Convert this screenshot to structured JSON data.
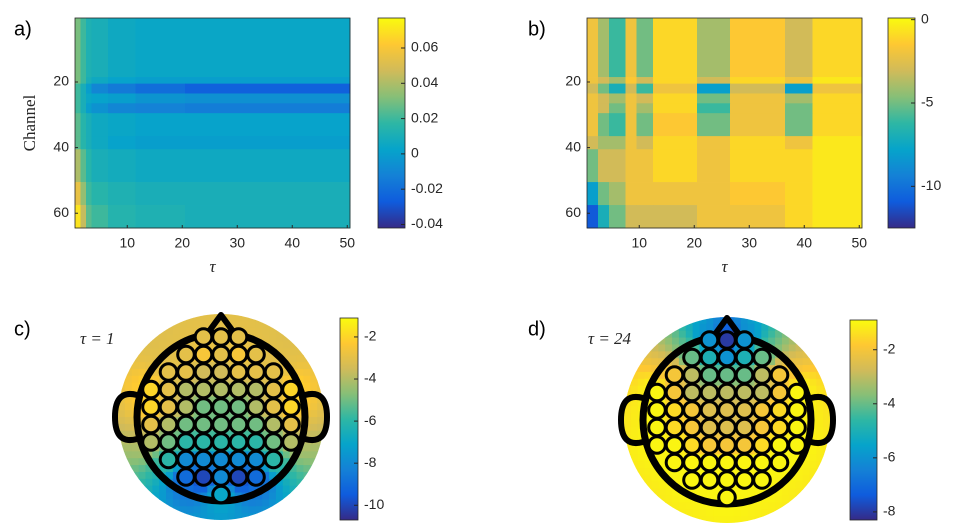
{
  "chart_data": [
    {
      "type": "heatmap",
      "panel_label": "a)",
      "y_label": "Channel",
      "x_label": "τ",
      "colormap": "parula",
      "xlim": [
        0.5,
        50.5
      ],
      "xticks": [
        10,
        20,
        30,
        40,
        50
      ],
      "ylim": [
        64.5,
        0.5
      ],
      "yticks": [
        20,
        40,
        60
      ],
      "x_edges": [
        0.5,
        1.5,
        2.5,
        3.5,
        6.5,
        11.5,
        20.5,
        30.5,
        40.5,
        50.5
      ],
      "y_edges": [
        0.5,
        18.5,
        20.5,
        23.5,
        26.5,
        29.5,
        36.5,
        40.5,
        50.5,
        57.5,
        64.5
      ],
      "values": [
        [
          0.03,
          0.02,
          0.012,
          0.01,
          0.006,
          0.004,
          0.004,
          0.004,
          0.004
        ],
        [
          0.03,
          0.02,
          0.01,
          0.006,
          0.002,
          0.0,
          0.0,
          0.0,
          0.0
        ],
        [
          0.02,
          0.01,
          0.0,
          -0.01,
          -0.015,
          -0.02,
          -0.025,
          -0.025,
          -0.025
        ],
        [
          0.02,
          0.01,
          0.004,
          0.002,
          0.0,
          -0.004,
          -0.006,
          -0.006,
          -0.006
        ],
        [
          0.02,
          0.01,
          0.0,
          -0.005,
          -0.01,
          -0.012,
          -0.014,
          -0.014,
          -0.014
        ],
        [
          0.025,
          0.015,
          0.01,
          0.006,
          0.004,
          0.002,
          0.002,
          0.002,
          0.002
        ],
        [
          0.025,
          0.015,
          0.01,
          0.006,
          0.002,
          0.0,
          0.0,
          0.0,
          0.0
        ],
        [
          0.04,
          0.025,
          0.015,
          0.01,
          0.008,
          0.006,
          0.006,
          0.006,
          0.006
        ],
        [
          0.055,
          0.035,
          0.02,
          0.015,
          0.012,
          0.01,
          0.01,
          0.01,
          0.01
        ],
        [
          0.07,
          0.045,
          0.025,
          0.02,
          0.014,
          0.012,
          0.01,
          0.01,
          0.01
        ]
      ],
      "clim": [
        -0.042,
        0.077
      ],
      "cticks": [
        -0.04,
        -0.02,
        0,
        0.02,
        0.04,
        0.06
      ]
    },
    {
      "type": "heatmap",
      "panel_label": "b)",
      "x_label": "τ",
      "colormap": "parula",
      "xlim": [
        0.5,
        50.5
      ],
      "xticks": [
        10,
        20,
        30,
        40,
        50
      ],
      "ylim": [
        64.5,
        0.5
      ],
      "yticks": [
        20,
        40,
        60
      ],
      "x_edges": [
        0.5,
        2.5,
        4.5,
        7.5,
        9.5,
        12.5,
        20.5,
        26.5,
        36.5,
        41.5,
        50.5
      ],
      "y_edges": [
        0.5,
        18.5,
        20.5,
        23.5,
        26.5,
        29.5,
        36.5,
        40.5,
        50.5,
        57.5,
        64.5
      ],
      "values": [
        [
          -2,
          -4,
          -6,
          -2,
          -5,
          -1,
          -4,
          -1.5,
          -3,
          -1
        ],
        [
          -2,
          -3,
          -4,
          -1.5,
          -3,
          -1,
          -3,
          -1,
          -2,
          -0.5
        ],
        [
          -3,
          -5,
          -7,
          -3,
          -6,
          -2,
          -8,
          -3,
          -8,
          -2
        ],
        [
          -2,
          -3,
          -4,
          -2,
          -3,
          -1,
          -5,
          -2,
          -4,
          -1
        ],
        [
          -2,
          -3,
          -5,
          -2,
          -4,
          -1,
          -6,
          -2,
          -5,
          -1
        ],
        [
          -2,
          -5,
          -6,
          -2,
          -5,
          -1.5,
          -5,
          -2,
          -5,
          -1
        ],
        [
          -3,
          -4,
          -4,
          -2,
          -3,
          -1,
          -2,
          -1,
          -2,
          -0.5
        ],
        [
          -5,
          -3,
          -3,
          -2,
          -2,
          -1,
          -2,
          -1,
          -1,
          -0.5
        ],
        [
          -8,
          -5,
          -4,
          -2,
          -2,
          -2,
          -2,
          -1.5,
          -1,
          -0.5
        ],
        [
          -11,
          -7,
          -5,
          -3,
          -3,
          -3,
          -2,
          -2,
          -1,
          -0.5
        ]
      ],
      "clim": [
        -12.5,
        0.1
      ],
      "cticks": [
        -10,
        -5,
        0
      ]
    },
    {
      "type": "topoplot",
      "panel_label": "c)",
      "annotation": "τ = 1",
      "colormap": "parula",
      "electrodes": [
        [
          -3,
          -3,
          -3
        ],
        [
          -3,
          -2.5,
          -3,
          -2.5,
          -3
        ],
        [
          -3,
          -3,
          -3.5,
          -3.5,
          -3,
          -3,
          -3
        ],
        [
          -2,
          -3,
          -4,
          -4,
          -4,
          -4,
          -4,
          -3,
          -2
        ],
        [
          -2,
          -3,
          -4,
          -5,
          -5,
          -5,
          -4,
          -3,
          -2
        ],
        [
          -3,
          -4,
          -5,
          -5,
          -5,
          -5,
          -5,
          -4,
          -3
        ],
        [
          -4,
          -5,
          -6,
          -6,
          -6,
          -6,
          -6,
          -5,
          -4
        ],
        [
          -6,
          -8,
          -8,
          -8,
          -8,
          -8,
          -6
        ],
        [
          -9,
          -10,
          -8,
          -10,
          -9
        ],
        [
          -7
        ]
      ],
      "clim": [
        -10.7,
        -1.1
      ],
      "cticks": [
        -10,
        -8,
        -6,
        -4,
        -2
      ]
    },
    {
      "type": "topoplot",
      "panel_label": "d)",
      "annotation": "τ = 24",
      "colormap": "parula",
      "electrodes": [
        [
          -6,
          -8,
          -6
        ],
        [
          -4,
          -5,
          -6,
          -5,
          -4
        ],
        [
          -2,
          -3,
          -4,
          -4,
          -4,
          -3,
          -2
        ],
        [
          -1,
          -2,
          -3,
          -3,
          -3,
          -3,
          -3,
          -2,
          -1
        ],
        [
          -1,
          -1.5,
          -2,
          -2.5,
          -2.5,
          -2.5,
          -2,
          -1.5,
          -1
        ],
        [
          -1,
          -1.5,
          -2,
          -2.5,
          -2.5,
          -2.5,
          -2,
          -1.5,
          -1
        ],
        [
          -1,
          -1,
          -1.5,
          -2,
          -2,
          -2,
          -1.5,
          -1,
          -1
        ],
        [
          -1,
          -1,
          -1,
          -1,
          -1,
          -1,
          -1
        ],
        [
          -1,
          -1,
          -1,
          -1,
          -1
        ],
        [
          -1
        ]
      ],
      "clim": [
        -8.3,
        -0.9
      ],
      "cticks": [
        -8,
        -6,
        -4,
        -2
      ]
    }
  ]
}
